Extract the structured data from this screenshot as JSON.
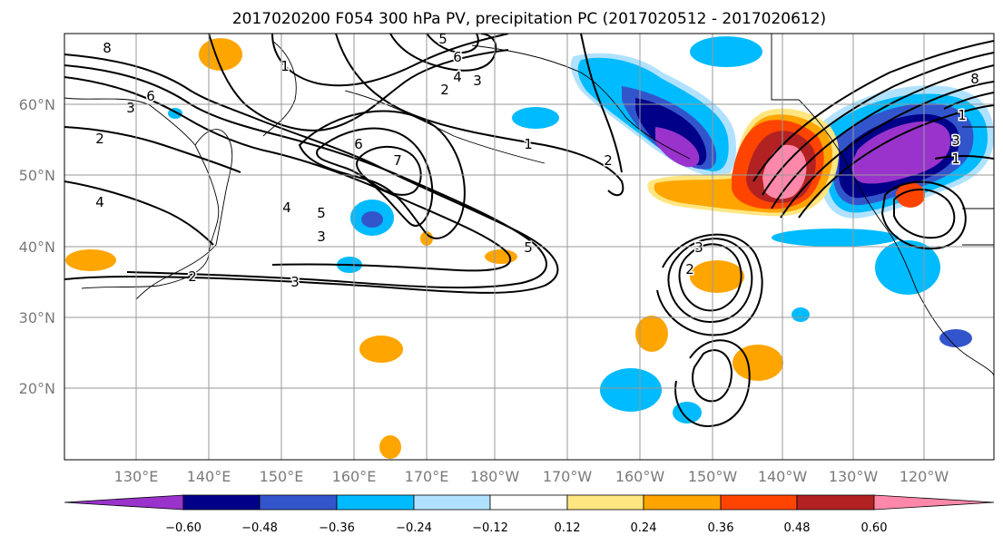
{
  "title": "2017020200 F054 300 hPa PV, precipitation PC (2017020512 - 2017020612)",
  "lat_labels": [
    "60°N",
    "50°N",
    "40°N",
    "30°N",
    "20°N"
  ],
  "lon_labels": [
    "130°E",
    "140°E",
    "150°E",
    "160°E",
    "170°E",
    "180°W",
    "170°W",
    "160°W",
    "150°W",
    "140°W",
    "130°W",
    "120°W"
  ],
  "colorbar": {
    "ticks": [
      "−0.60",
      "−0.48",
      "−0.36",
      "−0.24",
      "−0.12",
      "0.12",
      "0.24",
      "0.36",
      "0.48",
      "0.60"
    ],
    "colors": [
      "#9933cc",
      "#000088",
      "#3355cc",
      "#00bbff",
      "#b0e2ff",
      "#ffffff",
      "#ffe680",
      "#ffa500",
      "#ff4400",
      "#b22222",
      "#ff88aa"
    ]
  },
  "contour_labels": [
    "8",
    "6",
    "3",
    "2",
    "4",
    "1",
    "7",
    "5",
    "6",
    "4",
    "3",
    "5",
    "3",
    "2",
    "3",
    "2",
    "1",
    "2",
    "5",
    "3",
    "2",
    "6",
    "4",
    "8",
    "1",
    "3",
    "1"
  ],
  "chart_data": {
    "type": "heatmap",
    "title": "2017020200 F054 300 hPa PV, precipitation PC (2017020512 - 2017020612)",
    "lat_range": [
      10,
      70
    ],
    "lon_range": [
      120,
      250
    ],
    "shading_levels": [
      -0.6,
      -0.48,
      -0.36,
      -0.24,
      -0.12,
      0.12,
      0.24,
      0.36,
      0.48,
      0.6
    ],
    "contour_levels": [
      1,
      2,
      3,
      4,
      5,
      6,
      7,
      8
    ]
  }
}
